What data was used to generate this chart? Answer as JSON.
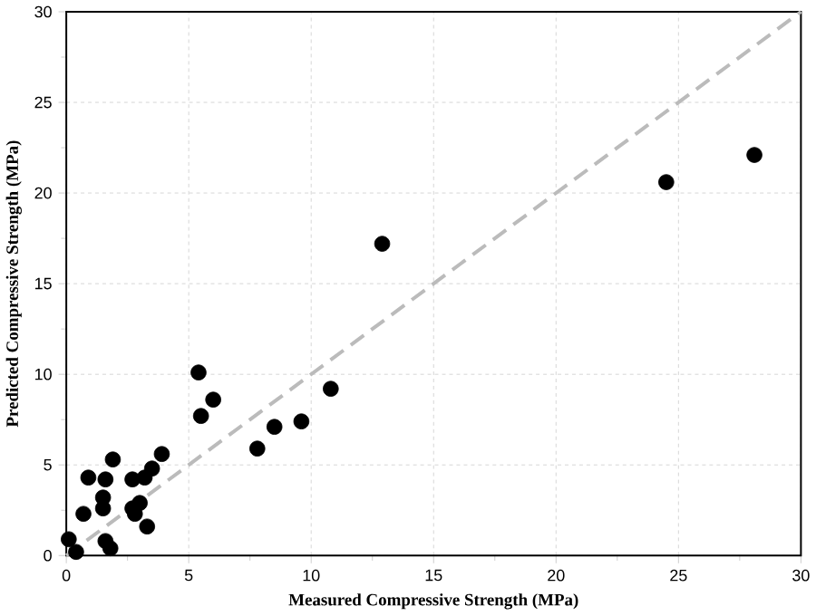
{
  "chart_data": {
    "type": "scatter",
    "xlabel": "Measured Compressive Strength (MPa)",
    "ylabel": "Predicted Compressive Strength (MPa)",
    "xlim": [
      0,
      30
    ],
    "ylim": [
      0,
      30
    ],
    "xticks": [
      0,
      5,
      10,
      15,
      20,
      25,
      30
    ],
    "yticks": [
      0,
      5,
      10,
      15,
      20,
      25,
      30
    ],
    "grid": true,
    "marker": "circle",
    "series": [
      {
        "color": "#000000",
        "x": [
          28.1,
          24.5,
          12.9,
          10.8,
          9.6,
          8.5,
          7.8,
          5.4,
          6.0,
          5.5,
          3.9,
          3.5,
          3.2,
          2.7,
          1.9,
          0.9,
          1.6,
          1.5,
          0.7,
          1.5,
          2.7,
          3.0,
          2.8,
          3.3,
          1.6,
          1.8,
          0.1,
          0.4
        ],
        "values": [
          22.1,
          20.6,
          17.2,
          9.2,
          7.4,
          7.1,
          5.9,
          10.1,
          8.6,
          7.7,
          5.6,
          4.8,
          4.3,
          4.2,
          5.3,
          4.3,
          4.2,
          3.2,
          2.3,
          2.6,
          2.6,
          2.9,
          2.3,
          1.6,
          0.8,
          0.4,
          0.9,
          0.2
        ]
      },
      {
        "type": "line",
        "color": "#bbbbbb",
        "line_style": "dashed",
        "marker": "none",
        "x": [
          0,
          30
        ],
        "values": [
          0,
          30
        ]
      }
    ]
  }
}
